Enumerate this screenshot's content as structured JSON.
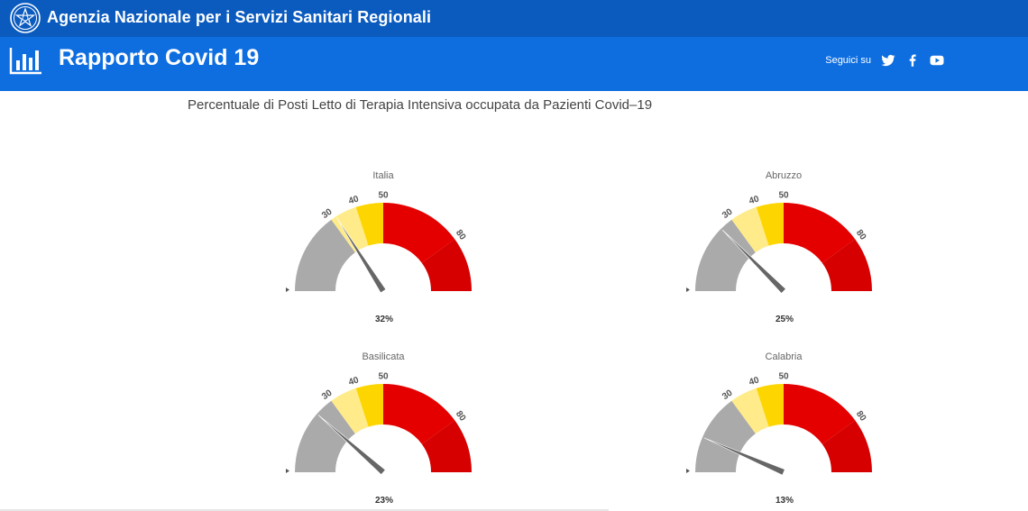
{
  "agency": {
    "name": "Agenzia Nazionale per i Servizi Sanitari Regionali"
  },
  "header": {
    "title": "Rapporto Covid 19",
    "follow_label": "Seguici su",
    "social": [
      "twitter-icon",
      "facebook-icon",
      "youtube-icon"
    ]
  },
  "chart_subtitle": "Percentuale di Posti Letto di Terapia Intensiva occupata da Pazienti Covid–19",
  "colors": {
    "topbar": "#0b5bbf",
    "header": "#0e6ee0",
    "band_gray": "#aaaaaa",
    "band_lightyellow": "#ffeb8a",
    "band_yellow": "#fdd500",
    "band_red": "#e50000",
    "band_darkred": "#d60000",
    "needle": "#666666"
  },
  "chart_data": [
    {
      "type": "gauge",
      "title": "Italia",
      "value": 32,
      "value_label": "32%",
      "range": [
        0,
        100
      ],
      "ticks": [
        "30",
        "40",
        "50",
        "80"
      ],
      "bands": [
        {
          "from": 0,
          "to": 30,
          "color": "#aaaaaa"
        },
        {
          "from": 30,
          "to": 40,
          "color": "#ffeb8a"
        },
        {
          "from": 40,
          "to": 50,
          "color": "#fdd500"
        },
        {
          "from": 50,
          "to": 80,
          "color": "#e50000"
        },
        {
          "from": 80,
          "to": 100,
          "color": "#d60000"
        }
      ]
    },
    {
      "type": "gauge",
      "title": "Abruzzo",
      "value": 25,
      "value_label": "25%",
      "range": [
        0,
        100
      ],
      "ticks": [
        "30",
        "40",
        "50",
        "80"
      ],
      "bands": [
        {
          "from": 0,
          "to": 30,
          "color": "#aaaaaa"
        },
        {
          "from": 30,
          "to": 40,
          "color": "#ffeb8a"
        },
        {
          "from": 40,
          "to": 50,
          "color": "#fdd500"
        },
        {
          "from": 50,
          "to": 80,
          "color": "#e50000"
        },
        {
          "from": 80,
          "to": 100,
          "color": "#d60000"
        }
      ]
    },
    {
      "type": "gauge",
      "title": "Basilicata",
      "value": 23,
      "value_label": "23%",
      "range": [
        0,
        100
      ],
      "ticks": [
        "30",
        "40",
        "50",
        "80"
      ],
      "bands": [
        {
          "from": 0,
          "to": 30,
          "color": "#aaaaaa"
        },
        {
          "from": 30,
          "to": 40,
          "color": "#ffeb8a"
        },
        {
          "from": 40,
          "to": 50,
          "color": "#fdd500"
        },
        {
          "from": 50,
          "to": 80,
          "color": "#e50000"
        },
        {
          "from": 80,
          "to": 100,
          "color": "#d60000"
        }
      ]
    },
    {
      "type": "gauge",
      "title": "Calabria",
      "value": 13,
      "value_label": "13%",
      "range": [
        0,
        100
      ],
      "ticks": [
        "30",
        "40",
        "50",
        "80"
      ],
      "bands": [
        {
          "from": 0,
          "to": 30,
          "color": "#aaaaaa"
        },
        {
          "from": 30,
          "to": 40,
          "color": "#ffeb8a"
        },
        {
          "from": 40,
          "to": 50,
          "color": "#fdd500"
        },
        {
          "from": 50,
          "to": 80,
          "color": "#e50000"
        },
        {
          "from": 80,
          "to": 100,
          "color": "#d60000"
        }
      ]
    }
  ]
}
